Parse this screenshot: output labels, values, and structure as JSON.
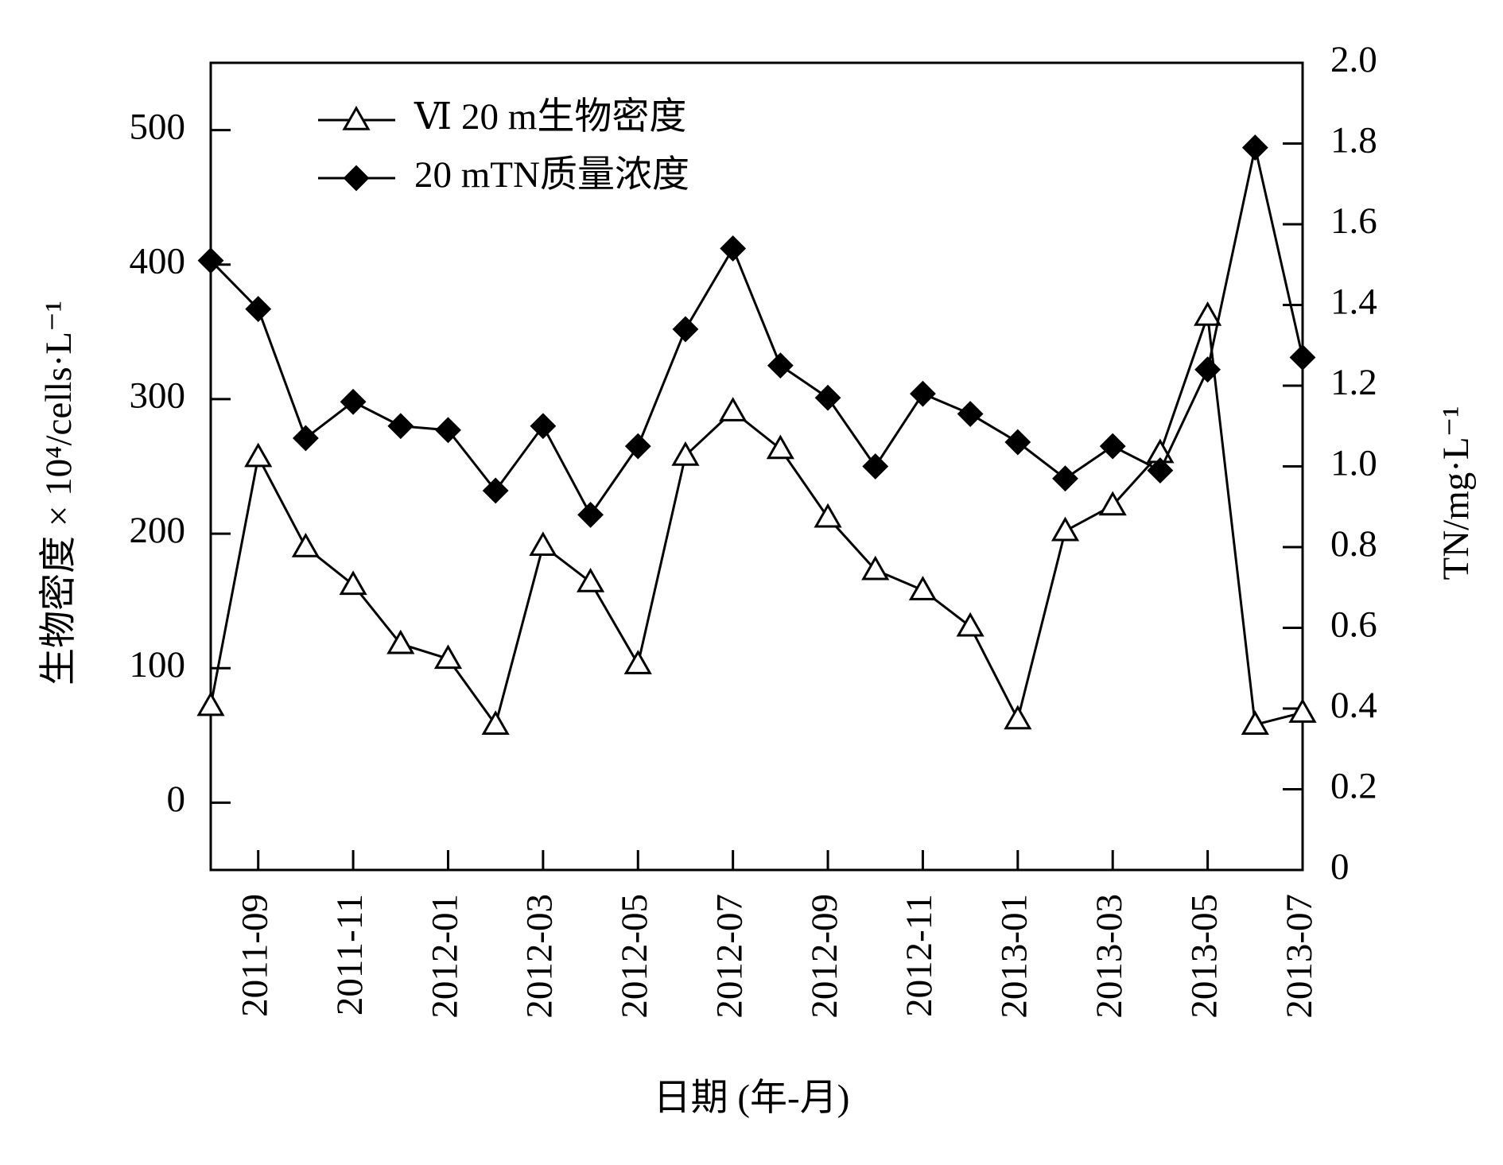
{
  "chart_data": {
    "type": "line",
    "xlabel": "日期 (年-月)",
    "ylabel": "生物密度 × 10⁴/cells·L⁻¹",
    "y2label": "TN/mg·L⁻¹",
    "categories": [
      null,
      "2011-09",
      null,
      "2011-11",
      null,
      "2012-01",
      null,
      "2012-03",
      null,
      "2012-05",
      null,
      "2012-07",
      null,
      "2012-09",
      null,
      "2012-11",
      null,
      "2013-01",
      null,
      "2013-03",
      null,
      "2013-05",
      null,
      "2013-07"
    ],
    "ylim": [
      -50,
      550
    ],
    "yticks": [
      0,
      100,
      200,
      300,
      400,
      500
    ],
    "y2lim": [
      0,
      2
    ],
    "y2ticks": [
      0,
      0.2,
      0.4,
      0.6,
      0.8,
      {
        "value": 1,
        "label": "1.0"
      },
      1.2,
      1.4,
      1.6,
      1.8,
      {
        "value": 2,
        "label": "2.0"
      }
    ],
    "legend": "upper left",
    "series": [
      {
        "name": "Ⅵ 20 m生物密度",
        "color": "#000000",
        "marker": "triangle-open",
        "values": [
          72,
          257,
          190,
          162,
          118,
          107,
          58,
          191,
          164,
          103,
          258,
          291,
          263,
          212,
          173,
          158,
          131,
          62,
          202,
          221,
          260,
          362,
          58,
          67
        ]
      },
      {
        "name": "20 mTN质量浓度",
        "color": "#000000",
        "marker": "diamond-filled",
        "axis": "y2",
        "values": [
          1.51,
          1.39,
          1.07,
          1.16,
          1.1,
          1.09,
          0.94,
          1.1,
          0.88,
          1.05,
          1.34,
          1.54,
          1.25,
          1.17,
          1.0,
          1.18,
          1.13,
          1.06,
          0.97,
          1.05,
          0.99,
          1.24,
          1.79,
          1.27
        ]
      }
    ]
  }
}
